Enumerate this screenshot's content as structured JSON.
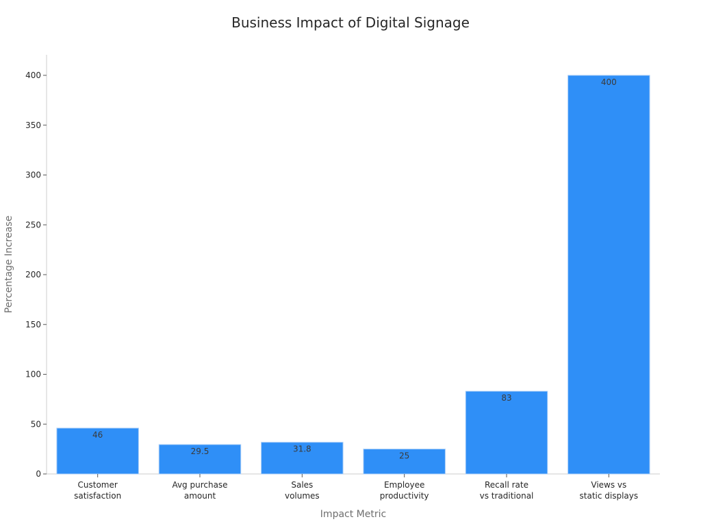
{
  "chart_data": {
    "type": "bar",
    "title": "Business Impact of Digital Signage",
    "xlabel": "Impact Metric",
    "ylabel": "Percentage Increase",
    "categories": [
      [
        "Customer",
        "satisfaction"
      ],
      [
        "Avg purchase",
        "amount"
      ],
      [
        "Sales",
        "volumes"
      ],
      [
        "Employee",
        "productivity"
      ],
      [
        "Recall rate",
        "vs traditional"
      ],
      [
        "Views vs",
        "static displays"
      ]
    ],
    "values": [
      46,
      29.5,
      31.8,
      25,
      83,
      400
    ],
    "value_labels": [
      "46",
      "29.5",
      "31.8",
      "25",
      "83",
      "400"
    ],
    "ylim": [
      0,
      420
    ],
    "yticks": [
      0,
      50,
      100,
      150,
      200,
      250,
      300,
      350,
      400
    ],
    "grid": false,
    "bar_color": "#2f8ff7",
    "bar_edge_color": "#a9cdf7"
  }
}
